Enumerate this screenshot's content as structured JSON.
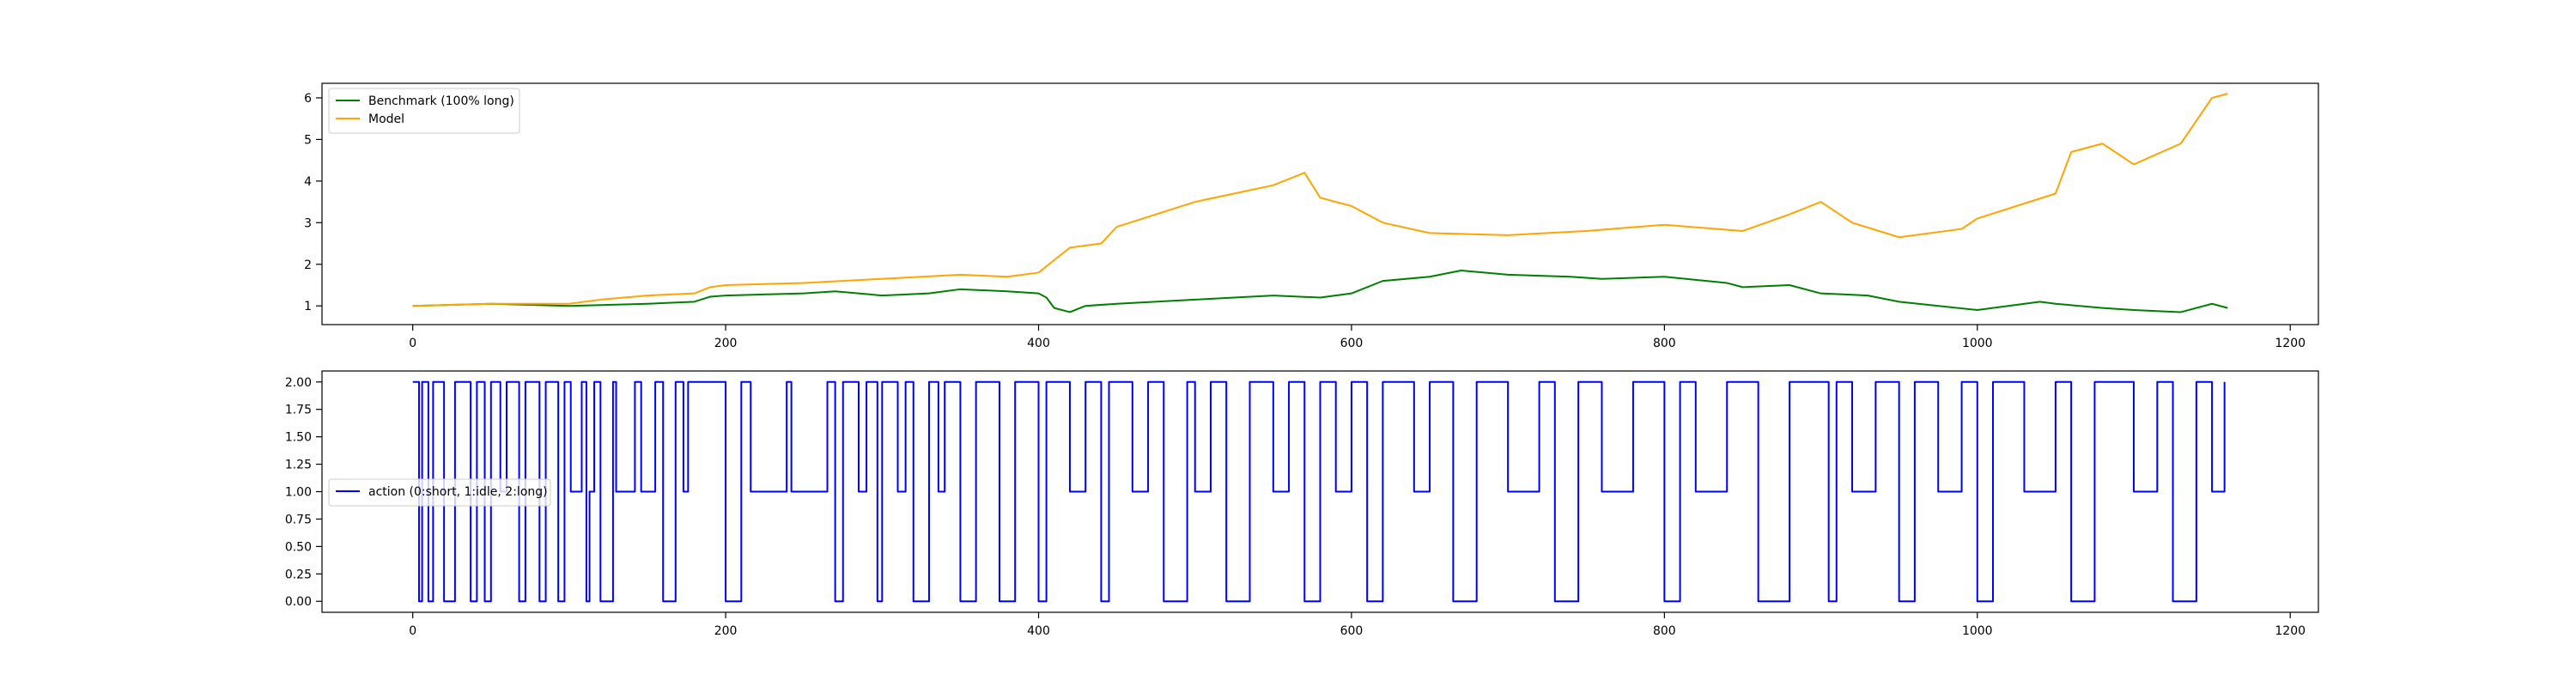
{
  "chart_data": [
    {
      "type": "line",
      "title": "",
      "xlabel": "",
      "ylabel": "",
      "xlim": [
        -58,
        1218
      ],
      "ylim": [
        0.55,
        6.35
      ],
      "xticks": [
        0,
        200,
        400,
        600,
        800,
        1000,
        1200
      ],
      "yticks": [
        1,
        2,
        3,
        4,
        5,
        6
      ],
      "grid": false,
      "legend_position": "upper left",
      "series": [
        {
          "name": "Benchmark (100% long)",
          "color": "#008000",
          "x": [
            0,
            50,
            100,
            120,
            150,
            180,
            190,
            200,
            250,
            270,
            300,
            330,
            350,
            380,
            400,
            405,
            410,
            420,
            430,
            450,
            500,
            550,
            580,
            600,
            620,
            650,
            670,
            700,
            740,
            760,
            800,
            840,
            850,
            880,
            900,
            930,
            950,
            1000,
            1040,
            1050,
            1080,
            1100,
            1130,
            1150,
            1160
          ],
          "y": [
            1.0,
            1.05,
            1.0,
            1.02,
            1.05,
            1.1,
            1.22,
            1.25,
            1.3,
            1.35,
            1.25,
            1.3,
            1.4,
            1.35,
            1.3,
            1.2,
            0.95,
            0.85,
            1.0,
            1.05,
            1.15,
            1.25,
            1.2,
            1.3,
            1.6,
            1.7,
            1.85,
            1.75,
            1.7,
            1.65,
            1.7,
            1.55,
            1.45,
            1.5,
            1.3,
            1.25,
            1.1,
            0.9,
            1.1,
            1.05,
            0.95,
            0.9,
            0.85,
            1.05,
            0.95
          ]
        },
        {
          "name": "Model",
          "color": "#ffa500",
          "x": [
            0,
            50,
            100,
            120,
            150,
            180,
            190,
            200,
            250,
            300,
            350,
            380,
            400,
            410,
            420,
            440,
            450,
            500,
            550,
            570,
            580,
            600,
            620,
            650,
            700,
            750,
            800,
            850,
            880,
            900,
            920,
            950,
            990,
            1000,
            1050,
            1060,
            1080,
            1100,
            1130,
            1150,
            1160
          ],
          "y": [
            1.0,
            1.05,
            1.05,
            1.15,
            1.25,
            1.3,
            1.45,
            1.5,
            1.55,
            1.65,
            1.75,
            1.7,
            1.8,
            2.1,
            2.4,
            2.5,
            2.9,
            3.5,
            3.9,
            4.2,
            3.6,
            3.4,
            3.0,
            2.75,
            2.7,
            2.8,
            2.95,
            2.8,
            3.2,
            3.5,
            3.0,
            2.65,
            2.85,
            3.1,
            3.7,
            4.7,
            4.9,
            4.4,
            4.9,
            6.0,
            6.1
          ]
        }
      ]
    },
    {
      "type": "line",
      "title": "",
      "xlabel": "",
      "ylabel": "",
      "xlim": [
        -58,
        1218
      ],
      "ylim": [
        -0.1,
        2.1
      ],
      "xticks": [
        0,
        200,
        400,
        600,
        800,
        1000,
        1200
      ],
      "yticks": [
        0.0,
        0.25,
        0.5,
        0.75,
        1.0,
        1.25,
        1.5,
        1.75,
        2.0
      ],
      "ytick_labels": [
        "0.00",
        "0.25",
        "0.50",
        "0.75",
        "1.00",
        "1.25",
        "1.50",
        "1.75",
        "2.00"
      ],
      "grid": false,
      "legend_position": "center left",
      "series": [
        {
          "name": "action (0:short, 1:idle, 2:long)",
          "color": "#0000ff",
          "x": [
            0,
            4,
            6,
            10,
            13,
            20,
            27,
            37,
            41,
            46,
            50,
            56,
            60,
            68,
            72,
            81,
            85,
            93,
            97,
            101,
            108,
            111,
            113,
            116,
            120,
            128,
            130,
            142,
            146,
            155,
            160,
            168,
            173,
            176,
            200,
            210,
            216,
            239,
            242,
            250,
            265,
            270,
            275,
            285,
            290,
            297,
            300,
            310,
            315,
            320,
            330,
            336,
            340,
            350,
            360,
            375,
            385,
            400,
            405,
            420,
            430,
            440,
            445,
            460,
            470,
            480,
            495,
            500,
            510,
            520,
            535,
            550,
            560,
            570,
            580,
            590,
            600,
            610,
            620,
            640,
            650,
            665,
            680,
            700,
            720,
            730,
            745,
            760,
            780,
            800,
            810,
            820,
            840,
            860,
            880,
            905,
            910,
            920,
            935,
            950,
            960,
            975,
            990,
            1000,
            1010,
            1030,
            1050,
            1060,
            1075,
            1100,
            1115,
            1125,
            1140,
            1150,
            1158
          ],
          "y": [
            2,
            0,
            2,
            0,
            2,
            0,
            2,
            0,
            2,
            0,
            2,
            1,
            2,
            0,
            2,
            0,
            2,
            0,
            2,
            1,
            2,
            0,
            1,
            2,
            0,
            2,
            1,
            2,
            1,
            2,
            0,
            2,
            1,
            2,
            0,
            2,
            1,
            2,
            1,
            1,
            2,
            0,
            2,
            1,
            2,
            0,
            2,
            1,
            2,
            0,
            2,
            1,
            2,
            0,
            2,
            0,
            2,
            0,
            2,
            1,
            2,
            0,
            2,
            1,
            2,
            0,
            2,
            1,
            2,
            0,
            2,
            1,
            2,
            0,
            2,
            1,
            2,
            0,
            2,
            1,
            2,
            0,
            2,
            1,
            2,
            0,
            2,
            1,
            2,
            0,
            2,
            1,
            2,
            0,
            2,
            0,
            2,
            1,
            2,
            0,
            2,
            1,
            2,
            0,
            2,
            1,
            2,
            0,
            2,
            1,
            2,
            0,
            2,
            1,
            2
          ]
        }
      ]
    }
  ]
}
